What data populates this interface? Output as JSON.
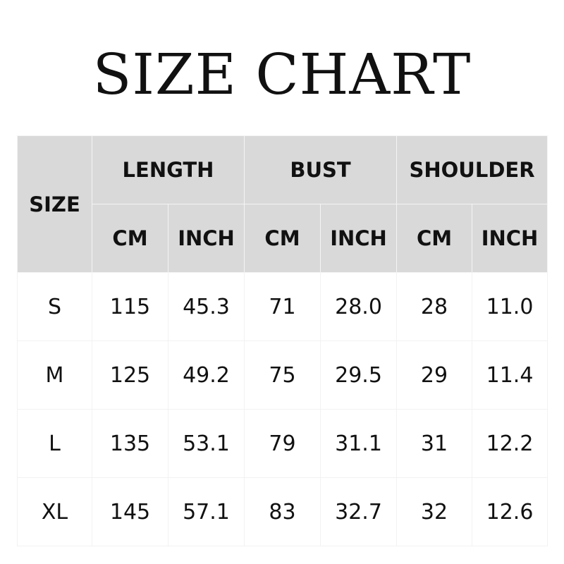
{
  "title": "SIZE CHART",
  "chart_data": {
    "type": "table",
    "size_header": "SIZE",
    "groups": [
      "LENGTH",
      "BUST",
      "SHOULDER"
    ],
    "units": [
      "CM",
      "INCH"
    ],
    "rows": [
      {
        "size": "S",
        "values": [
          "115",
          "45.3",
          "71",
          "28.0",
          "28",
          "11.0"
        ]
      },
      {
        "size": "M",
        "values": [
          "125",
          "49.2",
          "75",
          "29.5",
          "29",
          "11.4"
        ]
      },
      {
        "size": "L",
        "values": [
          "135",
          "53.1",
          "79",
          "31.1",
          "31",
          "12.2"
        ]
      },
      {
        "size": "XL",
        "values": [
          "145",
          "57.1",
          "83",
          "32.7",
          "32",
          "12.6"
        ]
      }
    ]
  }
}
